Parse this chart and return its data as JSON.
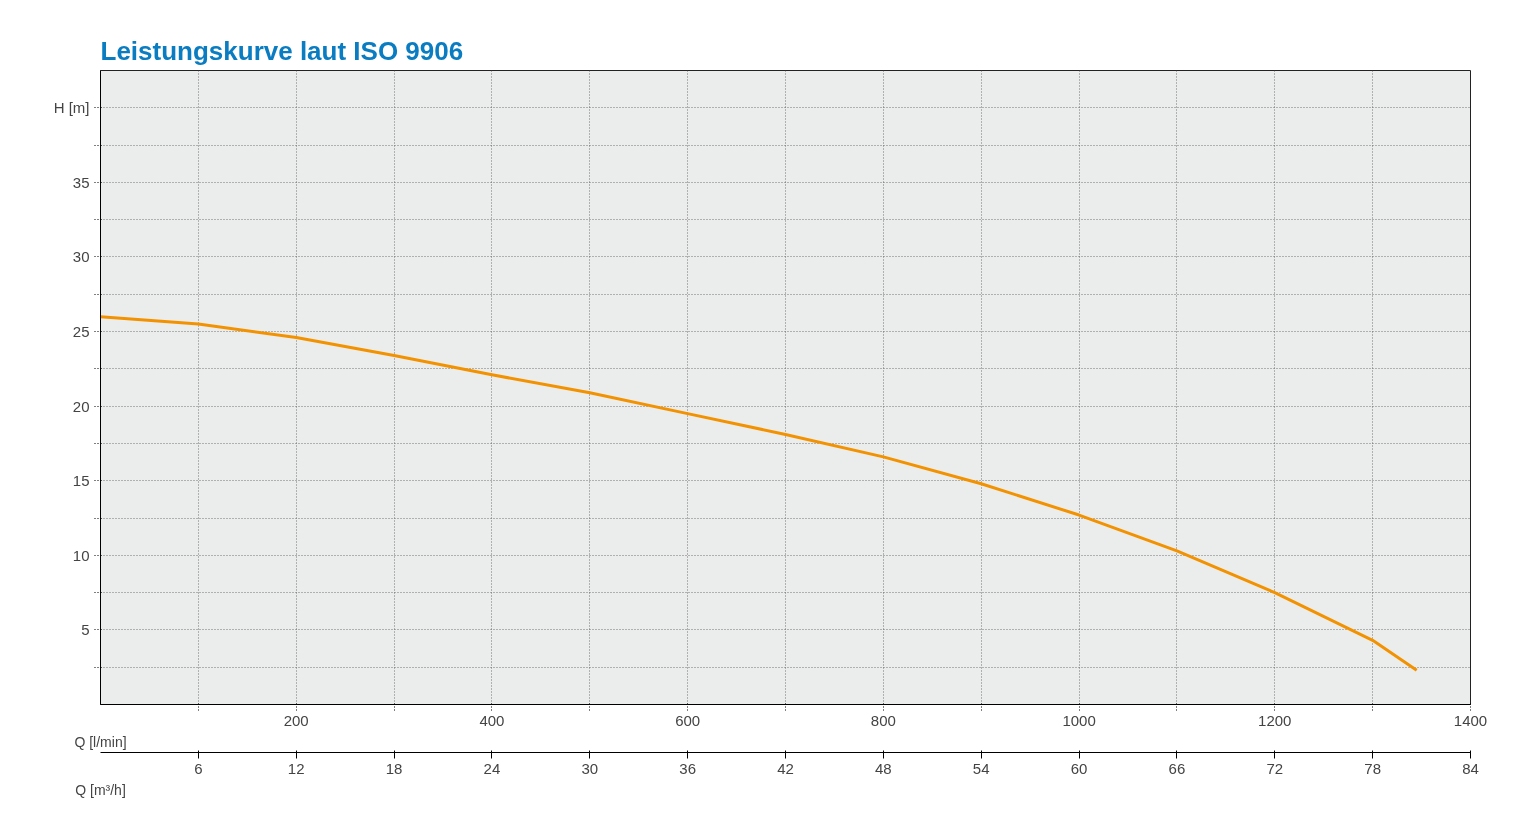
{
  "chart_data": {
    "type": "line",
    "title": "Leistungskurve laut ISO 9906",
    "xlabel": "Q [l/min]",
    "ylabel": "H [m]",
    "x2label": "Q [m³/h]",
    "x": [
      0,
      100,
      200,
      300,
      400,
      500,
      600,
      700,
      800,
      900,
      1000,
      1100,
      1200,
      1300,
      1345
    ],
    "series": [
      {
        "color": "#f39200",
        "values": [
          26,
          25.5,
          24.6,
          23.4,
          22.1,
          20.9,
          19.5,
          18.1,
          16.6,
          14.8,
          12.7,
          10.3,
          7.5,
          4.3,
          2.3
        ]
      }
    ],
    "xlim": [
      0,
      1400
    ],
    "ylim": [
      0,
      42.5
    ],
    "x2lim": [
      0,
      84
    ],
    "xticks": [
      {
        "value": 100,
        "label": null
      },
      200,
      {
        "value": 300,
        "label": null
      },
      400,
      {
        "value": 500,
        "label": null
      },
      600,
      {
        "value": 700,
        "label": null
      },
      800,
      {
        "value": 900,
        "label": null
      },
      1000,
      {
        "value": 1100,
        "label": null
      },
      1200,
      {
        "value": 1300,
        "label": null
      },
      1400
    ],
    "x2ticks": [
      6,
      12,
      18,
      24,
      30,
      36,
      42,
      48,
      54,
      60,
      66,
      72,
      78,
      84
    ],
    "yticks": [
      {
        "value": 2.5,
        "label": null
      },
      5,
      {
        "value": 7.5,
        "label": null
      },
      10,
      {
        "value": 12.5,
        "label": null
      },
      15,
      {
        "value": 17.5,
        "label": null
      },
      20,
      {
        "value": 22.5,
        "label": null
      },
      25,
      {
        "value": 27.5,
        "label": null
      },
      30,
      {
        "value": 32.5,
        "label": null
      },
      35,
      {
        "value": 37.5,
        "label": null
      },
      {
        "value": 40,
        "label": null
      }
    ],
    "grid": true,
    "marker": "none",
    "line_style": "solid"
  }
}
